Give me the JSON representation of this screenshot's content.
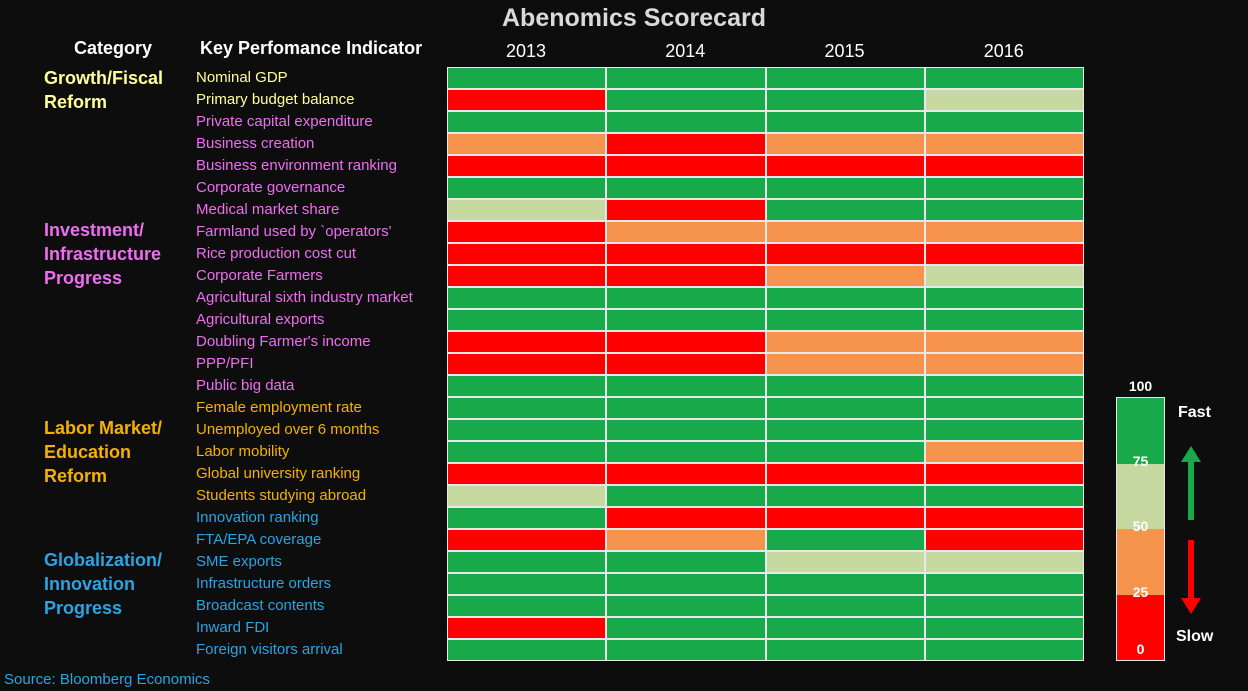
{
  "title": "Abenomics Scorecard",
  "headers": {
    "category": "Category",
    "kpi": "Key Perfomance Indicator"
  },
  "colors": {
    "green": "#18a94a",
    "light_green": "#c6d9a1",
    "orange": "#f6934c",
    "red": "#fe0000",
    "growth_text": "#ffff99",
    "investment_text": "#ee6ef0",
    "labor_text": "#f5b100",
    "global_text": "#2aa4e3"
  },
  "categories": [
    {
      "label": "Growth/Fiscal\nReform",
      "color_key": "growth_text"
    },
    {
      "label": "Investment/\nInfrastructure\nProgress",
      "color_key": "investment_text"
    },
    {
      "label": "Labor Market/\nEducation\nReform",
      "color_key": "labor_text"
    },
    {
      "label": "Globalization/\nInnovation\nProgress",
      "color_key": "global_text"
    }
  ],
  "chart_data": {
    "type": "heatmap",
    "title": "Abenomics Scorecard",
    "x": [
      "2013",
      "2014",
      "2015",
      "2016"
    ],
    "scale": {
      "min": 0,
      "max": 100,
      "ticks": [
        100,
        75,
        50,
        25,
        0
      ],
      "high_label": "Fast",
      "low_label": "Slow"
    },
    "rows": [
      {
        "kpi": "Nominal GDP",
        "group": "growth_text",
        "values": [
          100,
          100,
          100,
          100
        ]
      },
      {
        "kpi": "Primary budget balance",
        "group": "growth_text",
        "values": [
          0,
          100,
          100,
          50
        ]
      },
      {
        "kpi": "Private capital expenditure",
        "group": "investment_text",
        "values": [
          100,
          100,
          100,
          100
        ]
      },
      {
        "kpi": "Business creation",
        "group": "investment_text",
        "values": [
          25,
          0,
          25,
          25
        ]
      },
      {
        "kpi": "Business environment ranking",
        "group": "investment_text",
        "values": [
          0,
          0,
          0,
          0
        ]
      },
      {
        "kpi": "Corporate governance",
        "group": "investment_text",
        "values": [
          100,
          100,
          100,
          100
        ]
      },
      {
        "kpi": "Medical market share",
        "group": "investment_text",
        "values": [
          50,
          0,
          100,
          100
        ]
      },
      {
        "kpi": "Farmland used by `operators'",
        "group": "investment_text",
        "values": [
          0,
          25,
          25,
          25
        ]
      },
      {
        "kpi": "Rice production cost cut",
        "group": "investment_text",
        "values": [
          0,
          0,
          0,
          0
        ]
      },
      {
        "kpi": "Corporate Farmers",
        "group": "investment_text",
        "values": [
          0,
          0,
          25,
          50
        ]
      },
      {
        "kpi": "Agricultural sixth industry market",
        "group": "investment_text",
        "values": [
          100,
          100,
          100,
          100
        ]
      },
      {
        "kpi": "Agricultural exports",
        "group": "investment_text",
        "values": [
          100,
          100,
          100,
          100
        ]
      },
      {
        "kpi": "Doubling Farmer's income",
        "group": "investment_text",
        "values": [
          0,
          0,
          25,
          25
        ]
      },
      {
        "kpi": "PPP/PFI",
        "group": "investment_text",
        "values": [
          0,
          0,
          25,
          25
        ]
      },
      {
        "kpi": "Public big data",
        "group": "investment_text",
        "values": [
          100,
          100,
          100,
          100
        ]
      },
      {
        "kpi": "Female employment rate",
        "group": "labor_text",
        "values": [
          100,
          100,
          100,
          100
        ]
      },
      {
        "kpi": "Unemployed over 6 months",
        "group": "labor_text",
        "values": [
          100,
          100,
          100,
          100
        ]
      },
      {
        "kpi": "Labor mobility",
        "group": "labor_text",
        "values": [
          100,
          100,
          100,
          25
        ]
      },
      {
        "kpi": "Global university ranking",
        "group": "labor_text",
        "values": [
          0,
          0,
          0,
          0
        ]
      },
      {
        "kpi": "Students studying abroad",
        "group": "labor_text",
        "values": [
          50,
          100,
          100,
          100
        ]
      },
      {
        "kpi": "Innovation ranking",
        "group": "global_text",
        "values": [
          100,
          0,
          0,
          0
        ]
      },
      {
        "kpi": "FTA/EPA coverage",
        "group": "global_text",
        "values": [
          0,
          25,
          100,
          0
        ]
      },
      {
        "kpi": "SME exports",
        "group": "global_text",
        "values": [
          100,
          100,
          50,
          50
        ]
      },
      {
        "kpi": "Infrastructure orders",
        "group": "global_text",
        "values": [
          100,
          100,
          100,
          100
        ]
      },
      {
        "kpi": "Broadcast contents",
        "group": "global_text",
        "values": [
          100,
          100,
          100,
          100
        ]
      },
      {
        "kpi": "Inward FDI",
        "group": "global_text",
        "values": [
          0,
          100,
          100,
          100
        ]
      },
      {
        "kpi": "Foreign visitors arrival",
        "group": "global_text",
        "values": [
          100,
          100,
          100,
          100
        ]
      }
    ]
  },
  "source": "Source: Bloomberg Economics"
}
